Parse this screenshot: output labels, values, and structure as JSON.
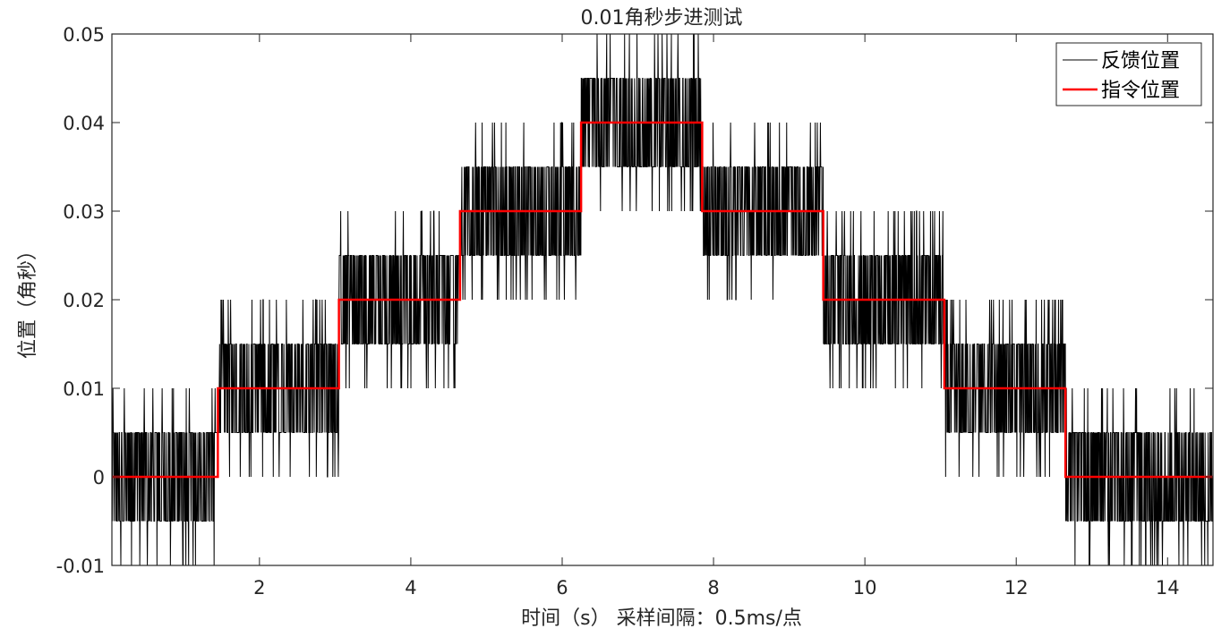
{
  "chart_data": {
    "type": "line",
    "title": "0.01角秒步进测试",
    "xlabel": "时间（s） 采样间隔：0.5ms/点",
    "ylabel": "位置（角秒）",
    "xlim": [
      0.05,
      14.6
    ],
    "ylim": [
      -0.01,
      0.05
    ],
    "xticks": [
      2,
      4,
      6,
      8,
      10,
      12,
      14
    ],
    "yticks": [
      -0.01,
      0,
      0.01,
      0.02,
      0.03,
      0.04,
      0.05
    ],
    "ytick_labels": [
      "-0.01",
      "0",
      "0.01",
      "0.02",
      "0.03",
      "0.04",
      "0.05"
    ],
    "grid": false,
    "legend_position": "top-right",
    "series": [
      {
        "name": "反馈位置",
        "color": "#000000",
        "kind": "quantized-noise",
        "resolution": 0.005,
        "segments": [
          {
            "x0": 0.05,
            "x1": 1.45,
            "level": 0.0
          },
          {
            "x0": 1.45,
            "x1": 3.05,
            "level": 0.01
          },
          {
            "x0": 3.05,
            "x1": 4.65,
            "level": 0.02
          },
          {
            "x0": 4.65,
            "x1": 6.25,
            "level": 0.03
          },
          {
            "x0": 6.25,
            "x1": 7.85,
            "level": 0.04
          },
          {
            "x0": 7.85,
            "x1": 9.45,
            "level": 0.03
          },
          {
            "x0": 9.45,
            "x1": 11.05,
            "level": 0.02
          },
          {
            "x0": 11.05,
            "x1": 12.65,
            "level": 0.01
          },
          {
            "x0": 12.65,
            "x1": 14.6,
            "level": 0.0
          }
        ]
      },
      {
        "name": "指令位置",
        "color": "#ff0000",
        "kind": "step",
        "x": [
          0.05,
          1.45,
          1.45,
          3.05,
          3.05,
          4.65,
          4.65,
          6.25,
          6.25,
          7.85,
          7.85,
          9.45,
          9.45,
          11.05,
          11.05,
          12.65,
          12.65,
          14.6
        ],
        "y": [
          0.0,
          0.0,
          0.01,
          0.01,
          0.02,
          0.02,
          0.03,
          0.03,
          0.04,
          0.04,
          0.03,
          0.03,
          0.02,
          0.02,
          0.01,
          0.01,
          0.0,
          0.0
        ]
      }
    ]
  }
}
